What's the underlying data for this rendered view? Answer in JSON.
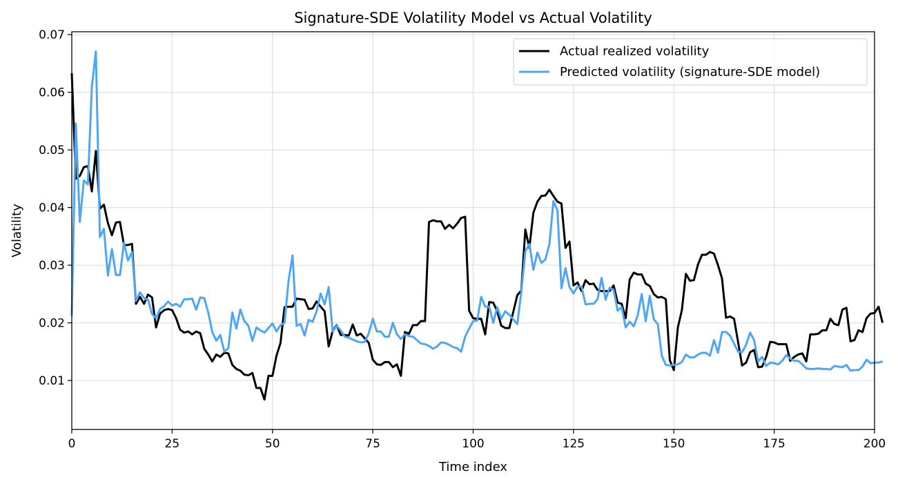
{
  "chart_data": {
    "type": "line",
    "title": "Signature-SDE Volatility Model vs Actual Volatility",
    "xlabel": "Time index",
    "ylabel": "Volatility",
    "xlim": [
      0,
      200
    ],
    "ylim": [
      0.0015,
      0.0705
    ],
    "xticks": [
      0,
      25,
      50,
      75,
      100,
      125,
      150,
      175,
      200
    ],
    "xtick_labels": [
      "0",
      "25",
      "50",
      "75",
      "100",
      "125",
      "150",
      "175",
      "200"
    ],
    "yticks": [
      0.01,
      0.02,
      0.03,
      0.04,
      0.05,
      0.06,
      0.07
    ],
    "ytick_labels": [
      "0.01",
      "0.02",
      "0.03",
      "0.04",
      "0.05",
      "0.06",
      "0.07"
    ],
    "grid": true,
    "legend_position": "top-right",
    "series": [
      {
        "name": "Actual realized volatility",
        "color": "#000000",
        "x_start": 0,
        "values": [
          0.0633,
          0.045,
          0.0455,
          0.047,
          0.0472,
          0.0428,
          0.0498,
          0.0398,
          0.0405,
          0.0373,
          0.0352,
          0.0374,
          0.0375,
          0.0335,
          0.0335,
          0.0337,
          0.0233,
          0.0245,
          0.0233,
          0.0249,
          0.0244,
          0.0192,
          0.0216,
          0.0222,
          0.0224,
          0.0222,
          0.0208,
          0.0188,
          0.0183,
          0.0185,
          0.018,
          0.0185,
          0.0182,
          0.0155,
          0.0145,
          0.0133,
          0.0145,
          0.0141,
          0.0148,
          0.0147,
          0.0127,
          0.012,
          0.0117,
          0.011,
          0.0109,
          0.0113,
          0.0087,
          0.0087,
          0.0067,
          0.0108,
          0.0108,
          0.0143,
          0.0165,
          0.0227,
          0.0228,
          0.0228,
          0.0242,
          0.0241,
          0.024,
          0.0224,
          0.0225,
          0.0237,
          0.0228,
          0.022,
          0.0159,
          0.0186,
          0.0196,
          0.0179,
          0.0179,
          0.0178,
          0.0197,
          0.0178,
          0.0181,
          0.0173,
          0.0165,
          0.0136,
          0.0128,
          0.0127,
          0.0132,
          0.0132,
          0.0123,
          0.0128,
          0.0108,
          0.0184,
          0.0181,
          0.0196,
          0.0196,
          0.0203,
          0.0203,
          0.0375,
          0.0378,
          0.0376,
          0.0376,
          0.0363,
          0.037,
          0.0364,
          0.0372,
          0.0382,
          0.0384,
          0.0221,
          0.0208,
          0.0207,
          0.0207,
          0.018,
          0.0236,
          0.0235,
          0.022,
          0.0195,
          0.0191,
          0.0191,
          0.0219,
          0.0248,
          0.0256,
          0.0362,
          0.033,
          0.0391,
          0.041,
          0.042,
          0.0421,
          0.0431,
          0.042,
          0.041,
          0.0407,
          0.033,
          0.0341,
          0.0265,
          0.027,
          0.0255,
          0.0274,
          0.0267,
          0.0268,
          0.0257,
          0.0255,
          0.0255,
          0.0255,
          0.0265,
          0.0235,
          0.0233,
          0.0208,
          0.0275,
          0.0287,
          0.0284,
          0.0284,
          0.0268,
          0.0264,
          0.025,
          0.0244,
          0.0245,
          0.0241,
          0.0135,
          0.0118,
          0.0192,
          0.0222,
          0.0285,
          0.0273,
          0.0274,
          0.0301,
          0.0318,
          0.0318,
          0.0323,
          0.032,
          0.03,
          0.0277,
          0.0209,
          0.0211,
          0.0207,
          0.0167,
          0.0126,
          0.0131,
          0.0149,
          0.0153,
          0.0123,
          0.0124,
          0.0141,
          0.0167,
          0.0166,
          0.0163,
          0.0163,
          0.0163,
          0.0134,
          0.0141,
          0.0145,
          0.0147,
          0.0133,
          0.018,
          0.018,
          0.0181,
          0.0187,
          0.0187,
          0.0207,
          0.0198,
          0.0196,
          0.0223,
          0.0226,
          0.0168,
          0.017,
          0.0187,
          0.0184,
          0.0208,
          0.0216,
          0.0217,
          0.0228,
          0.02
        ]
      },
      {
        "name": "Predicted volatility (signature-SDE model)",
        "color": "#4da6f5",
        "x_start": 0,
        "values": [
          0.0212,
          0.0546,
          0.0375,
          0.0447,
          0.044,
          0.061,
          0.0671,
          0.0349,
          0.0363,
          0.0282,
          0.0328,
          0.0283,
          0.0283,
          0.0339,
          0.0308,
          0.0323,
          0.0238,
          0.0253,
          0.0243,
          0.024,
          0.0215,
          0.0208,
          0.0224,
          0.0229,
          0.0237,
          0.023,
          0.0233,
          0.0228,
          0.0241,
          0.0241,
          0.0242,
          0.0223,
          0.0244,
          0.0243,
          0.0218,
          0.0184,
          0.0169,
          0.0179,
          0.015,
          0.0156,
          0.0218,
          0.019,
          0.0223,
          0.0203,
          0.0195,
          0.0169,
          0.0192,
          0.0187,
          0.0183,
          0.0191,
          0.0199,
          0.0185,
          0.0196,
          0.02,
          0.0273,
          0.0317,
          0.0195,
          0.0198,
          0.0178,
          0.0205,
          0.0202,
          0.022,
          0.0251,
          0.0232,
          0.0262,
          0.0185,
          0.0195,
          0.0187,
          0.0176,
          0.0174,
          0.0171,
          0.0168,
          0.0166,
          0.0167,
          0.0182,
          0.0207,
          0.0185,
          0.0185,
          0.0176,
          0.0176,
          0.02,
          0.018,
          0.0172,
          0.018,
          0.0177,
          0.0176,
          0.017,
          0.0164,
          0.0163,
          0.016,
          0.0155,
          0.0159,
          0.0166,
          0.0165,
          0.0162,
          0.0158,
          0.0156,
          0.015,
          0.0176,
          0.019,
          0.0203,
          0.0204,
          0.0245,
          0.0228,
          0.0228,
          0.02,
          0.0227,
          0.0207,
          0.022,
          0.0214,
          0.0206,
          0.0198,
          0.0254,
          0.0324,
          0.0337,
          0.0292,
          0.0322,
          0.0304,
          0.031,
          0.0337,
          0.0411,
          0.0395,
          0.026,
          0.0295,
          0.0262,
          0.0251,
          0.0263,
          0.0263,
          0.0232,
          0.0233,
          0.0233,
          0.0241,
          0.0278,
          0.024,
          0.0261,
          0.0257,
          0.0221,
          0.0227,
          0.0192,
          0.0202,
          0.0194,
          0.0213,
          0.025,
          0.0203,
          0.0247,
          0.0206,
          0.0198,
          0.0143,
          0.0127,
          0.0126,
          0.0127,
          0.0128,
          0.0132,
          0.0145,
          0.014,
          0.014,
          0.0145,
          0.0148,
          0.0148,
          0.0143,
          0.017,
          0.0148,
          0.0184,
          0.0184,
          0.0178,
          0.0164,
          0.015,
          0.0149,
          0.0162,
          0.0183,
          0.017,
          0.0133,
          0.0141,
          0.0125,
          0.0131,
          0.013,
          0.0128,
          0.0134,
          0.0144,
          0.0138,
          0.0134,
          0.0134,
          0.0128,
          0.0121,
          0.012,
          0.012,
          0.0121,
          0.012,
          0.012,
          0.0119,
          0.0125,
          0.0124,
          0.0123,
          0.0127,
          0.0117,
          0.0118,
          0.0118,
          0.0124,
          0.0136,
          0.013,
          0.0131,
          0.0131,
          0.0133
        ]
      }
    ]
  }
}
